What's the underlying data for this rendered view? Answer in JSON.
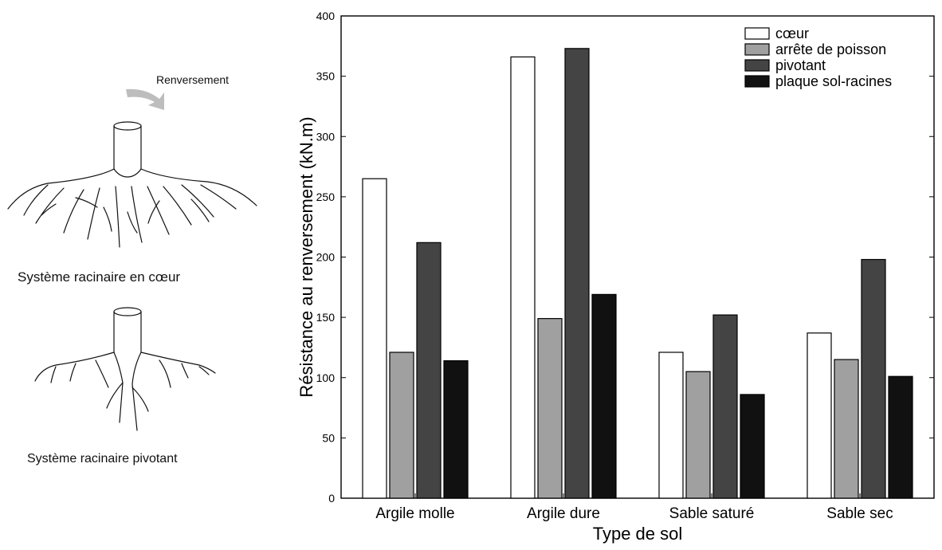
{
  "illustrations": {
    "arrow_label": "Renversement",
    "heart_caption": "Système racinaire en cœur",
    "tap_caption": "Système racinaire pivotant"
  },
  "chart_data": {
    "type": "bar",
    "title": "",
    "xlabel": "Type de sol",
    "ylabel": "Résistance au renversement (kN.m)",
    "ylim": [
      0,
      400
    ],
    "yticks": [
      0,
      50,
      100,
      150,
      200,
      250,
      300,
      350,
      400
    ],
    "categories": [
      "Argile molle",
      "Argile dure",
      "Sable saturé",
      "Sable sec"
    ],
    "series": [
      {
        "name": "cœur",
        "color": "#ffffff",
        "values": [
          265,
          366,
          121,
          137
        ]
      },
      {
        "name": "arrête de poisson",
        "color": "#a0a0a0",
        "values": [
          121,
          149,
          105,
          115
        ]
      },
      {
        "name": "pivotant",
        "color": "#444444",
        "values": [
          212,
          373,
          152,
          198
        ]
      },
      {
        "name": "plaque sol-racines",
        "color": "#111111",
        "values": [
          114,
          169,
          86,
          101
        ]
      }
    ],
    "legend_position": "top-right",
    "grid": false
  }
}
